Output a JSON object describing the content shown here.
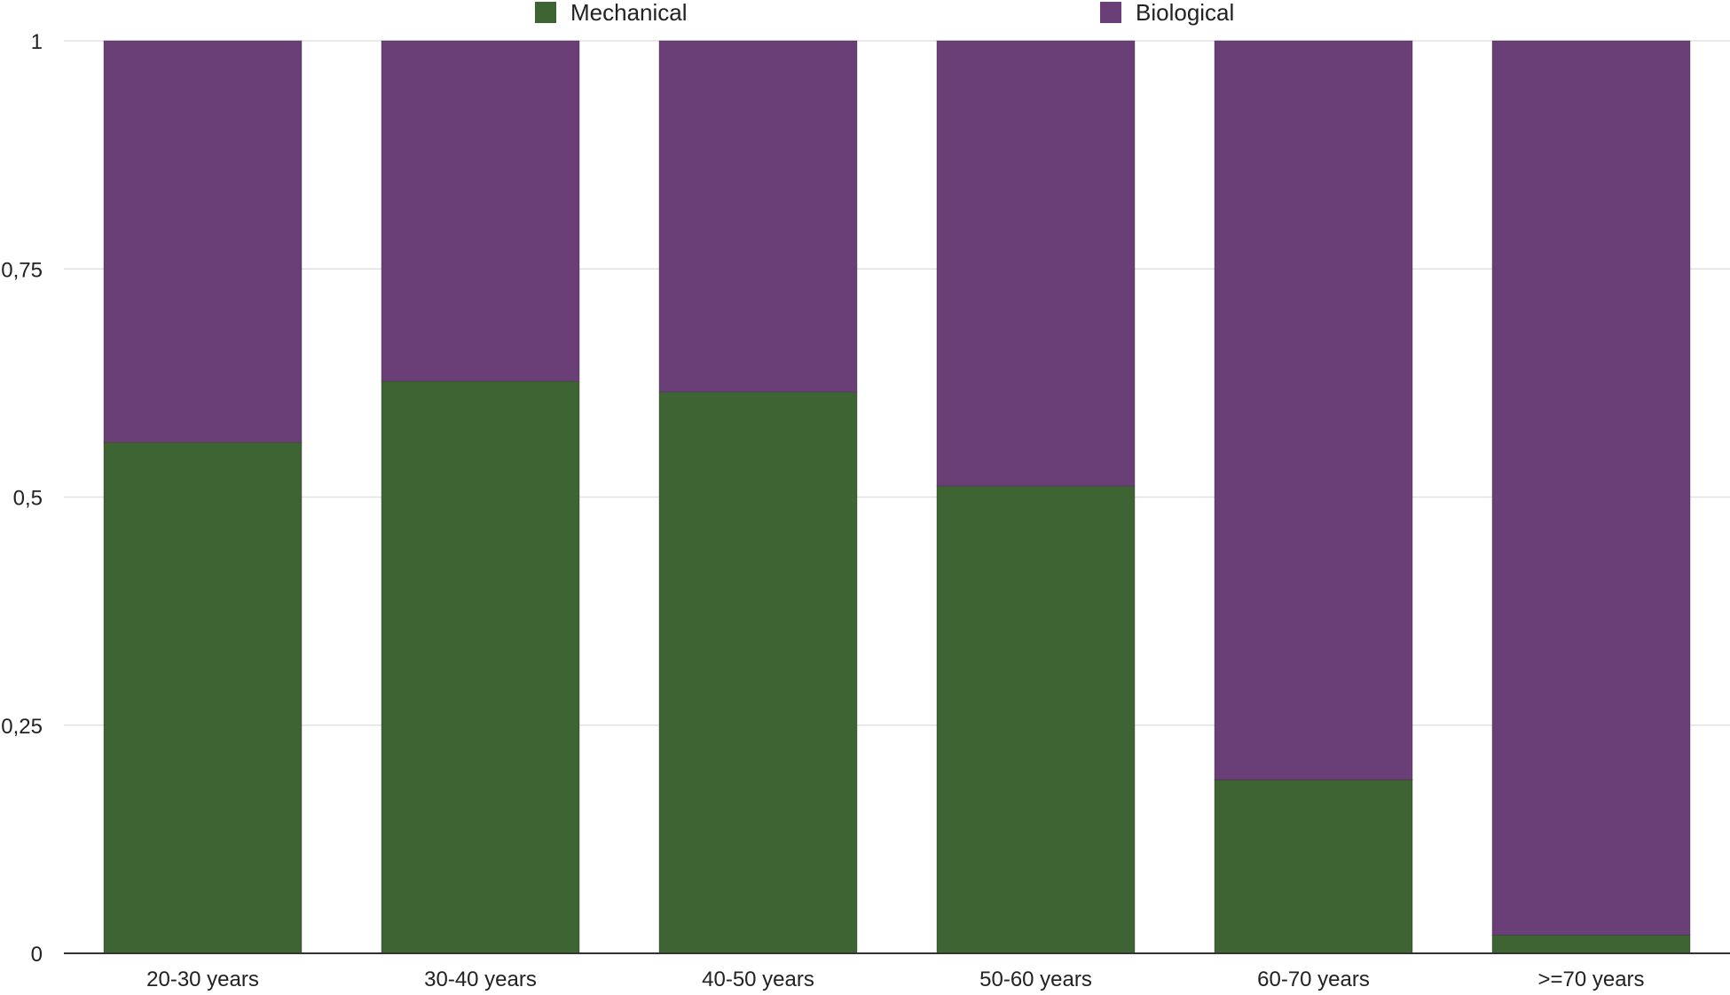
{
  "chart_data": {
    "type": "bar",
    "stacked": true,
    "categories": [
      "20-30 years",
      "30-40 years",
      "40-50 years",
      "50-60 years",
      "60-70 years",
      ">=70 years"
    ],
    "series": [
      {
        "name": "Mechanical",
        "color": "#3e6434",
        "values": [
          0.56,
          0.627,
          0.615,
          0.512,
          0.19,
          0.02
        ]
      },
      {
        "name": "Biological",
        "color": "#6a3f77",
        "values": [
          0.44,
          0.373,
          0.385,
          0.488,
          0.81,
          0.98
        ]
      }
    ],
    "yticks": [
      "0",
      "0,25",
      "0,5",
      "0,75",
      "1"
    ],
    "ytick_values": [
      0,
      0.25,
      0.5,
      0.75,
      1
    ],
    "ylim": [
      0,
      1
    ],
    "grid": true,
    "legend_position": "top"
  }
}
